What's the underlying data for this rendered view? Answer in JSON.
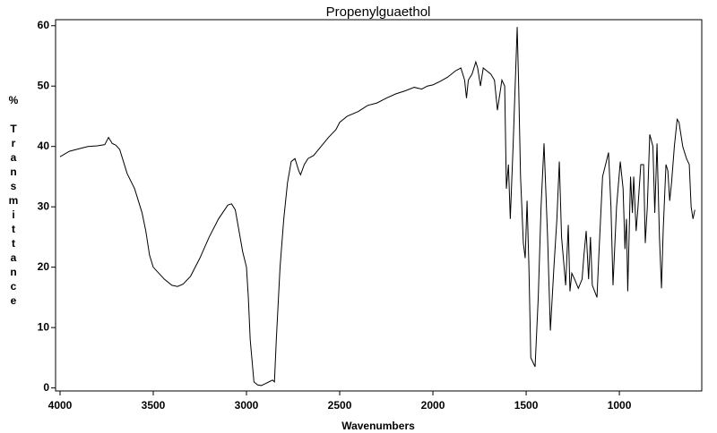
{
  "chart_data": {
    "type": "line",
    "title": "Propenylguaethol",
    "xlabel": "Wavenumbers",
    "ylabel": "% Transmittance",
    "xlim": [
      4024,
      558
    ],
    "ylim": [
      -0.5,
      61
    ],
    "xticks": [
      4000,
      3500,
      3000,
      2500,
      2000,
      1500,
      1000
    ],
    "yticks": [
      0,
      10,
      20,
      30,
      40,
      50,
      60
    ],
    "x": [
      4000,
      3950,
      3900,
      3850,
      3800,
      3760,
      3740,
      3720,
      3700,
      3680,
      3660,
      3640,
      3600,
      3560,
      3540,
      3520,
      3500,
      3470,
      3440,
      3400,
      3370,
      3340,
      3300,
      3250,
      3200,
      3150,
      3100,
      3080,
      3060,
      3040,
      3020,
      3000,
      2990,
      2980,
      2960,
      2940,
      2920,
      2900,
      2880,
      2860,
      2850,
      2840,
      2820,
      2800,
      2780,
      2760,
      2740,
      2720,
      2710,
      2690,
      2670,
      2640,
      2600,
      2560,
      2520,
      2500,
      2460,
      2400,
      2350,
      2300,
      2250,
      2200,
      2150,
      2100,
      2060,
      2030,
      2000,
      1960,
      1920,
      1880,
      1850,
      1830,
      1820,
      1810,
      1790,
      1770,
      1760,
      1745,
      1730,
      1710,
      1690,
      1670,
      1654,
      1630,
      1615,
      1606,
      1595,
      1585,
      1570,
      1548,
      1540,
      1530,
      1515,
      1505,
      1495,
      1485,
      1475,
      1452,
      1435,
      1420,
      1404,
      1385,
      1370,
      1351,
      1335,
      1322,
      1310,
      1288,
      1274,
      1265,
      1255,
      1240,
      1220,
      1200,
      1190,
      1178,
      1165,
      1155,
      1145,
      1120,
      1110,
      1090,
      1058,
      1045,
      1034,
      1015,
      995,
      980,
      970,
      962,
      955,
      940,
      930,
      923,
      910,
      900,
      885,
      870,
      861,
      850,
      837,
      820,
      810,
      798,
      785,
      774,
      765,
      750,
      740,
      730,
      720,
      705,
      690,
      680,
      660,
      640,
      625,
      615,
      605,
      595
    ],
    "series": [
      {
        "name": "Propenylguaethol",
        "color": "#000000",
        "values": [
          38.3,
          39.2,
          39.6,
          40.0,
          40.1,
          40.3,
          41.5,
          40.5,
          40.2,
          39.5,
          37.5,
          35.5,
          33,
          29,
          26,
          22,
          20,
          19,
          18,
          17,
          16.8,
          17.2,
          18.5,
          21.5,
          25,
          28,
          30.3,
          30.5,
          29.5,
          26,
          22.5,
          20,
          15,
          8,
          1,
          0.5,
          0.4,
          0.7,
          1,
          1.3,
          1.0,
          8,
          20,
          28,
          34,
          37.5,
          38,
          36,
          35.3,
          37,
          38,
          38.5,
          40,
          41.5,
          42.8,
          44,
          45,
          45.8,
          46.8,
          47.2,
          48,
          48.7,
          49.2,
          49.8,
          49.5,
          50,
          50.2,
          50.8,
          51.5,
          52.5,
          53,
          51,
          48,
          51,
          52,
          54,
          53,
          50,
          53,
          52.5,
          52,
          51,
          46,
          51,
          50,
          33,
          37,
          28,
          40,
          59.8,
          50,
          35,
          24,
          21.5,
          31,
          20,
          5,
          3.5,
          15,
          30,
          40.5,
          25,
          9.5,
          20,
          28,
          37.5,
          25,
          17,
          27,
          16,
          19,
          18,
          16.5,
          18,
          22,
          26,
          18,
          25,
          17,
          15,
          22,
          35,
          39,
          30,
          17,
          30,
          37.5,
          33,
          23,
          28,
          16,
          35,
          29,
          35,
          26,
          30,
          37,
          37,
          24,
          30,
          42,
          40,
          29,
          40.5,
          25,
          16.5,
          26,
          37,
          36,
          31,
          34,
          40,
          44.5,
          44,
          40,
          38,
          37,
          30,
          28,
          29.5
        ]
      }
    ]
  }
}
